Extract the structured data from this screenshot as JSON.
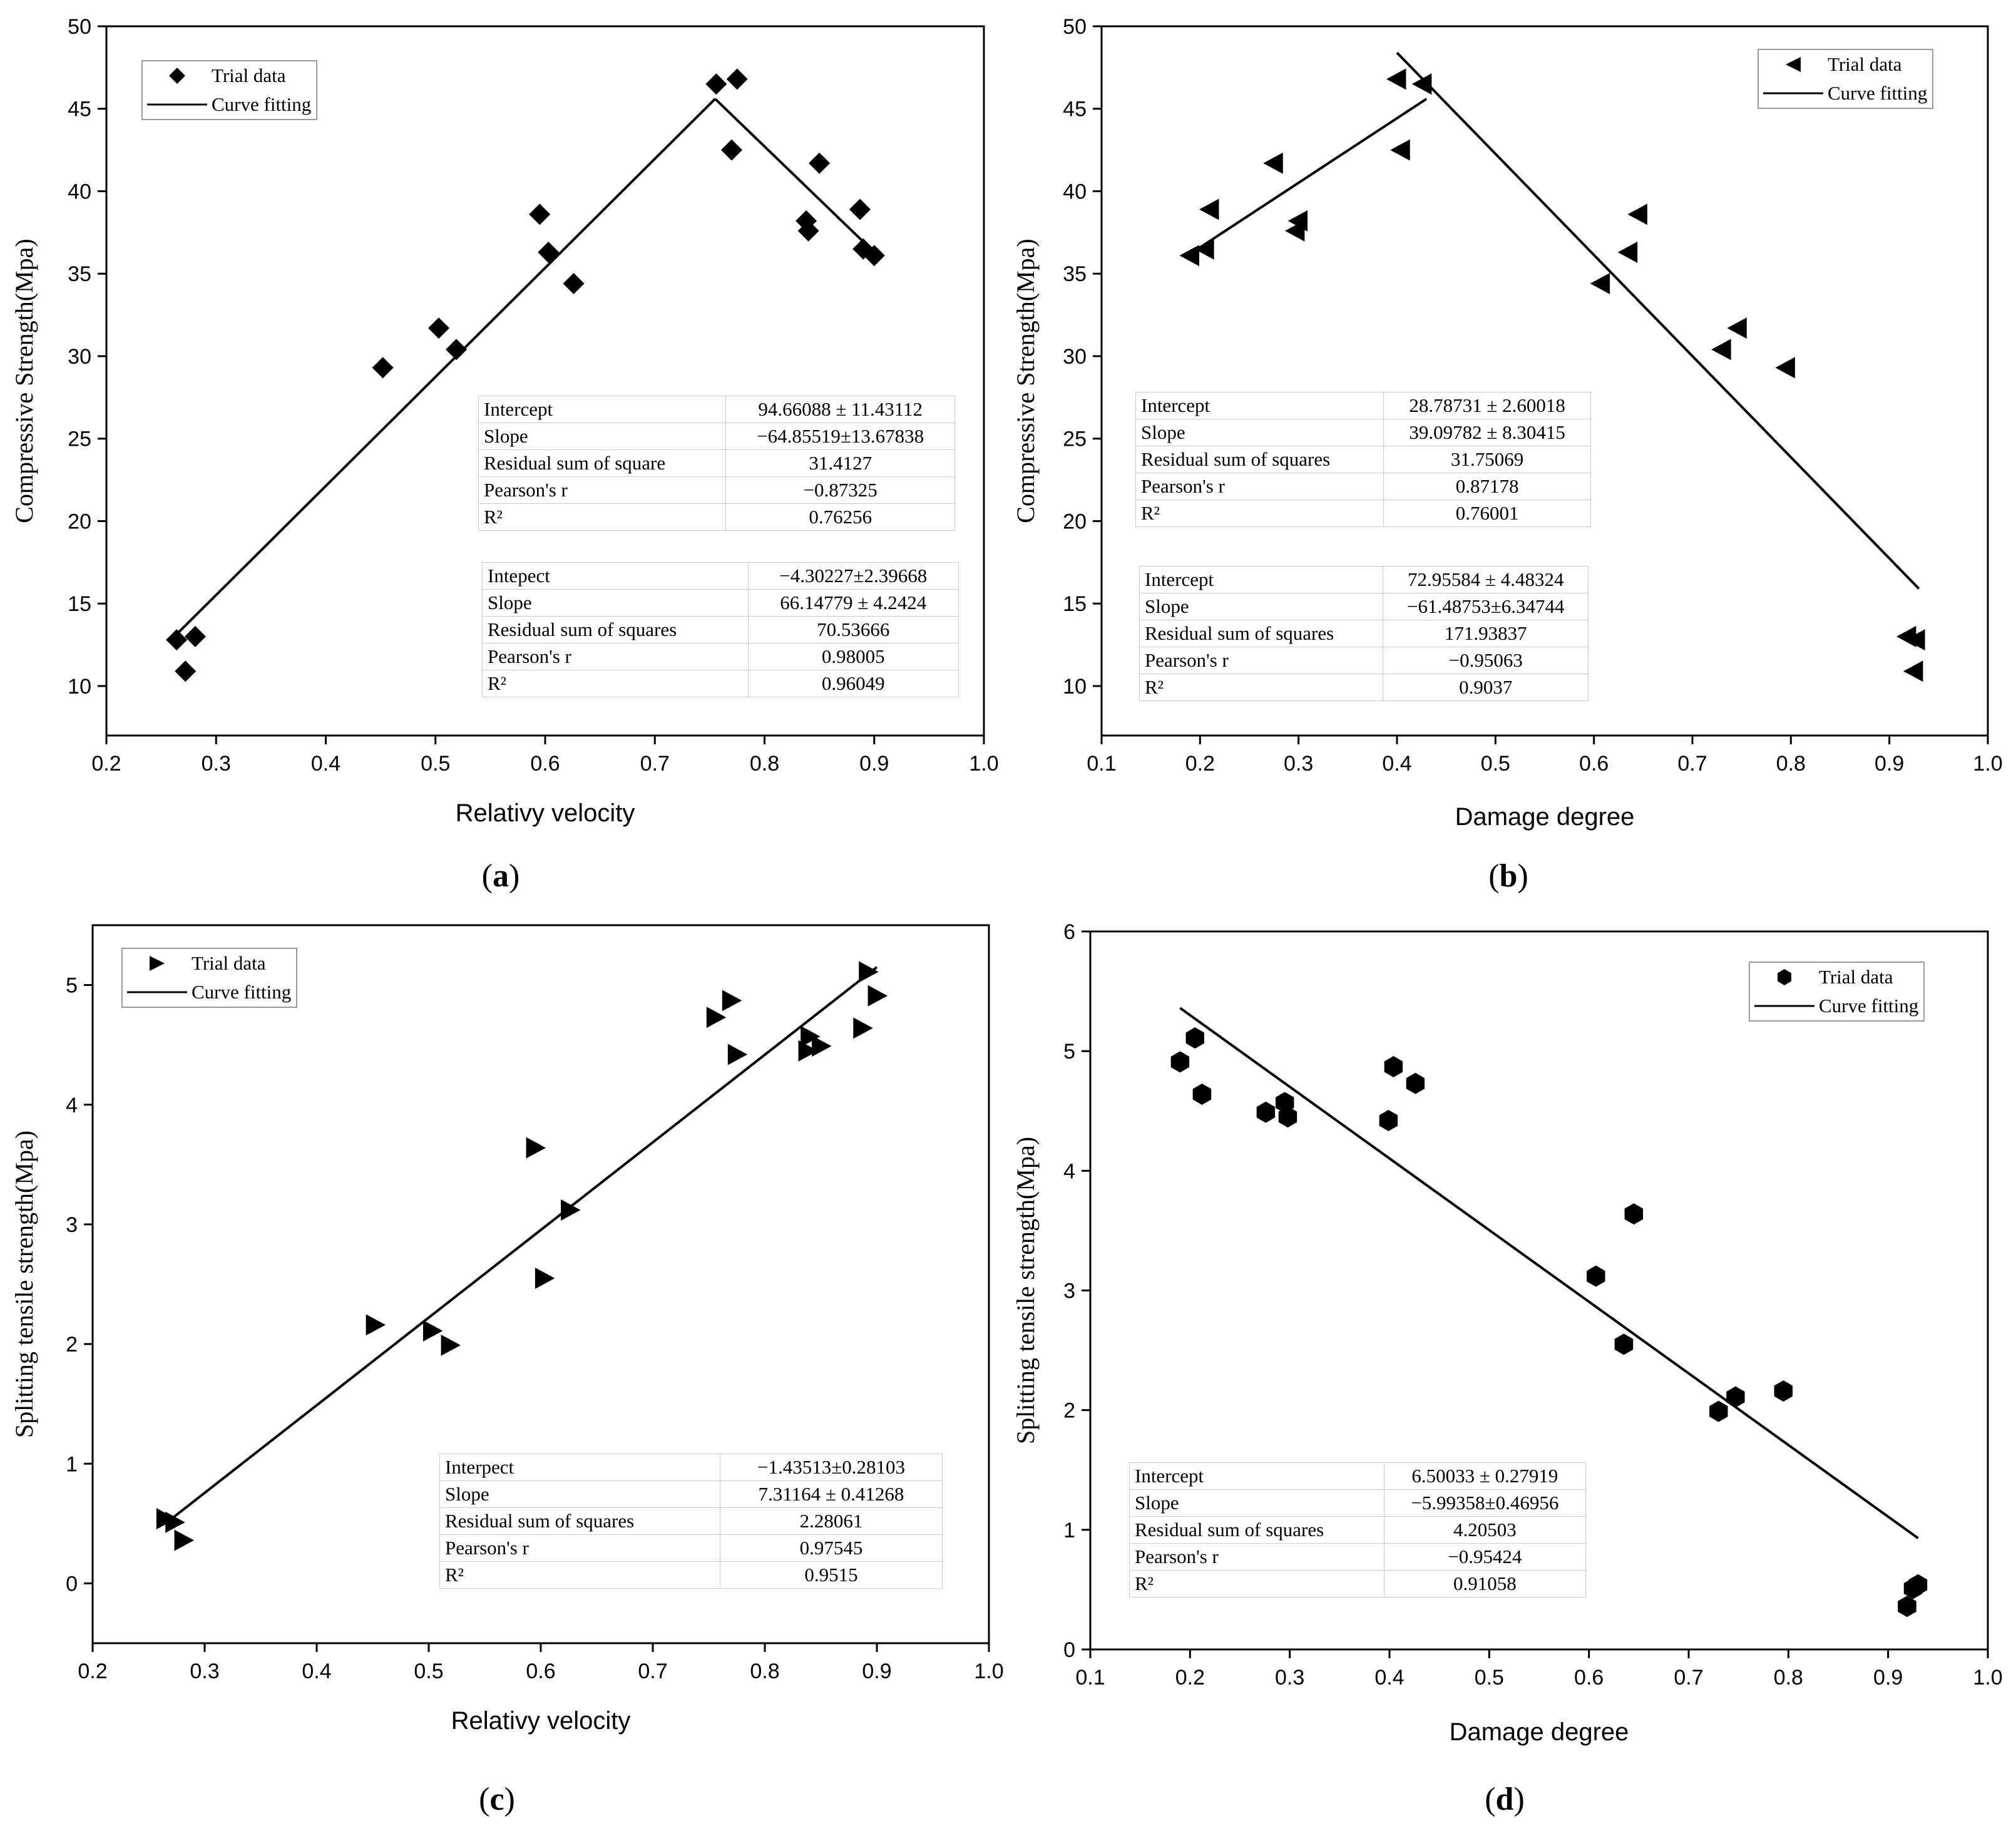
{
  "figure": {
    "panels": [
      {
        "id": "a",
        "caption_letter": "a",
        "legend": {
          "data_label": "Trial data",
          "fit_label": "Curve fitting"
        },
        "stats_tables": [
          {
            "rows": [
              {
                "label": "Intercept",
                "value": "94.66088 ± 11.43112"
              },
              {
                "label": "Slope",
                "value": "−64.85519±13.67838"
              },
              {
                "label": "Residual sum of square",
                "value": "31.4127"
              },
              {
                "label": "Pearson's r",
                "value": "−0.87325"
              },
              {
                "label": "R²",
                "value": "0.76256"
              }
            ]
          },
          {
            "rows": [
              {
                "label": "Intepect",
                "value": "−4.30227±2.39668"
              },
              {
                "label": "Slope",
                "value": "66.14779 ± 4.2424"
              },
              {
                "label": "Residual sum of squares",
                "value": "70.53666"
              },
              {
                "label": "Pearson's r",
                "value": "0.98005"
              },
              {
                "label": "R²",
                "value": "0.96049"
              }
            ]
          }
        ]
      },
      {
        "id": "b",
        "caption_letter": "b",
        "legend": {
          "data_label": "Trial data",
          "fit_label": "Curve fitting"
        },
        "stats_tables": [
          {
            "rows": [
              {
                "label": "Intercept",
                "value": "28.78731 ± 2.60018"
              },
              {
                "label": "Slope",
                "value": "39.09782 ± 8.30415"
              },
              {
                "label": "Residual sum of squares",
                "value": "31.75069"
              },
              {
                "label": "Pearson's r",
                "value": "0.87178"
              },
              {
                "label": "R²",
                "value": "0.76001"
              }
            ]
          },
          {
            "rows": [
              {
                "label": "Intercept",
                "value": "72.95584 ± 4.48324"
              },
              {
                "label": "Slope",
                "value": "−61.48753±6.34744"
              },
              {
                "label": "Residual sum of squares",
                "value": "171.93837"
              },
              {
                "label": "Pearson's r",
                "value": "−0.95063"
              },
              {
                "label": "R²",
                "value": "0.9037"
              }
            ]
          }
        ]
      },
      {
        "id": "c",
        "caption_letter": "c",
        "legend": {
          "data_label": "Trial data",
          "fit_label": "Curve fitting"
        },
        "stats_tables": [
          {
            "rows": [
              {
                "label": "Interpect",
                "value": "−1.43513±0.28103"
              },
              {
                "label": "Slope",
                "value": "7.31164 ± 0.41268"
              },
              {
                "label": "Residual sum of squares",
                "value": "2.28061"
              },
              {
                "label": "Pearson's r",
                "value": "0.97545"
              },
              {
                "label": "R²",
                "value": "0.9515"
              }
            ]
          }
        ]
      },
      {
        "id": "d",
        "caption_letter": "d",
        "legend": {
          "data_label": "Trial data",
          "fit_label": "Curve fitting"
        },
        "stats_tables": [
          {
            "rows": [
              {
                "label": "Intercept",
                "value": "6.50033 ± 0.27919"
              },
              {
                "label": "Slope",
                "value": "−5.99358±0.46956"
              },
              {
                "label": "Residual sum of squares",
                "value": "4.20503"
              },
              {
                "label": "Pearson's r",
                "value": "−0.95424"
              },
              {
                "label": "R²",
                "value": "0.91058"
              }
            ]
          }
        ]
      }
    ]
  },
  "chart_data": [
    {
      "panel": "a",
      "type": "scatter",
      "xlabel": "Relativy velocity",
      "ylabel": "Compressive Strength(Mpa)",
      "xlim": [
        0.2,
        1.0
      ],
      "ylim": [
        7,
        50
      ],
      "xticks": [
        "0.2",
        "0.3",
        "0.4",
        "0.5",
        "0.6",
        "0.7",
        "0.8",
        "0.9",
        "1.0"
      ],
      "yticks": [
        "10",
        "15",
        "20",
        "25",
        "30",
        "35",
        "40",
        "45",
        "50"
      ],
      "marker": "diamond",
      "series": [
        {
          "name": "Trial data",
          "x": [
            0.264,
            0.272,
            0.281,
            0.452,
            0.503,
            0.519,
            0.595,
            0.603,
            0.626,
            0.756,
            0.77,
            0.775,
            0.838,
            0.84,
            0.85,
            0.887,
            0.89,
            0.9
          ],
          "y": [
            12.8,
            10.9,
            13.0,
            29.3,
            31.7,
            30.4,
            38.6,
            36.3,
            34.4,
            46.5,
            42.5,
            46.8,
            38.2,
            37.6,
            41.7,
            38.9,
            36.5,
            36.1
          ]
        }
      ],
      "fits": [
        {
          "name": "Curve fitting",
          "x": [
            0.265,
            0.755
          ],
          "y": [
            13.2,
            45.6
          ]
        },
        {
          "name": "Curve fitting",
          "x": [
            0.755,
            0.9
          ],
          "y": [
            45.6,
            36.3
          ]
        }
      ]
    },
    {
      "panel": "b",
      "type": "scatter",
      "xlabel": "Damage degree",
      "ylabel": "Compressive Strength(Mpa)",
      "xlim": [
        0.1,
        1.0
      ],
      "ylim": [
        7,
        50
      ],
      "xticks": [
        "0.1",
        "0.2",
        "0.3",
        "0.4",
        "0.5",
        "0.6",
        "0.7",
        "0.8",
        "0.9",
        "1.0"
      ],
      "yticks": [
        "10",
        "15",
        "20",
        "25",
        "30",
        "35",
        "40",
        "45",
        "50"
      ],
      "marker": "triangle-left",
      "series": [
        {
          "name": "Trial data",
          "x": [
            0.19,
            0.205,
            0.21,
            0.275,
            0.297,
            0.3,
            0.4,
            0.404,
            0.426,
            0.607,
            0.635,
            0.645,
            0.73,
            0.746,
            0.795,
            0.918,
            0.927,
            0.925
          ],
          "y": [
            36.1,
            36.5,
            38.9,
            41.7,
            37.6,
            38.2,
            46.8,
            42.5,
            46.5,
            34.4,
            36.3,
            38.6,
            30.4,
            31.7,
            29.3,
            13.0,
            12.8,
            10.9
          ]
        }
      ],
      "fits": [
        {
          "name": "Curve fitting",
          "x": [
            0.19,
            0.43
          ],
          "y": [
            36.2,
            45.6
          ]
        },
        {
          "name": "Curve fitting",
          "x": [
            0.4,
            0.93
          ],
          "y": [
            48.4,
            15.9
          ]
        }
      ]
    },
    {
      "panel": "c",
      "type": "scatter",
      "xlabel": "Relativy velocity",
      "ylabel": "Splitting tensile strength(Mpa)",
      "xlim": [
        0.2,
        1.0
      ],
      "ylim": [
        -0.5,
        5.5
      ],
      "xticks": [
        "0.2",
        "0.3",
        "0.4",
        "0.5",
        "0.6",
        "0.7",
        "0.8",
        "0.9",
        "1.0"
      ],
      "yticks": [
        "0",
        "1",
        "2",
        "3",
        "4",
        "5"
      ],
      "marker": "triangle-right",
      "series": [
        {
          "name": "Trial data",
          "x": [
            0.265,
            0.273,
            0.281,
            0.452,
            0.503,
            0.519,
            0.595,
            0.603,
            0.626,
            0.756,
            0.77,
            0.775,
            0.838,
            0.84,
            0.85,
            0.887,
            0.892,
            0.9
          ],
          "y": [
            0.54,
            0.51,
            0.36,
            2.16,
            2.11,
            1.99,
            3.64,
            2.55,
            3.12,
            4.73,
            4.87,
            4.42,
            4.45,
            4.57,
            4.49,
            4.64,
            5.11,
            4.91
          ]
        }
      ],
      "fits": [
        {
          "name": "Curve fitting",
          "x": [
            0.265,
            0.9
          ],
          "y": [
            0.5,
            5.15
          ]
        }
      ]
    },
    {
      "panel": "d",
      "type": "scatter",
      "xlabel": "Damage degree",
      "ylabel": "Splitting tensile strength(Mpa)",
      "xlim": [
        0.1,
        1.0
      ],
      "ylim": [
        0,
        6
      ],
      "xticks": [
        "0.1",
        "0.2",
        "0.3",
        "0.4",
        "0.5",
        "0.6",
        "0.7",
        "0.8",
        "0.9",
        "1.0"
      ],
      "yticks": [
        "0",
        "1",
        "2",
        "3",
        "4",
        "5",
        "6"
      ],
      "marker": "hexagon",
      "series": [
        {
          "name": "Trial data",
          "x": [
            0.19,
            0.205,
            0.212,
            0.276,
            0.295,
            0.298,
            0.399,
            0.404,
            0.426,
            0.607,
            0.635,
            0.645,
            0.73,
            0.747,
            0.795,
            0.919,
            0.925,
            0.93
          ],
          "y": [
            4.91,
            5.11,
            4.64,
            4.49,
            4.57,
            4.45,
            4.42,
            4.87,
            4.73,
            3.12,
            2.55,
            3.64,
            1.99,
            2.11,
            2.16,
            0.36,
            0.51,
            0.54
          ]
        }
      ],
      "fits": [
        {
          "name": "Curve fitting",
          "x": [
            0.19,
            0.93
          ],
          "y": [
            5.36,
            0.93
          ]
        }
      ]
    }
  ]
}
